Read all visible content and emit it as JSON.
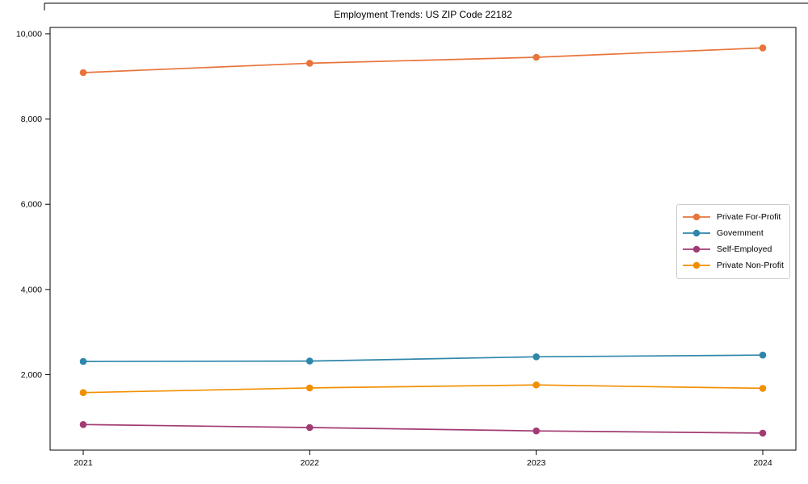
{
  "chart_data": {
    "type": "line",
    "title": "Employment Trends: US ZIP Code 22182",
    "categories": [
      "2021",
      "2022",
      "2023",
      "2024"
    ],
    "xlabel": "",
    "ylabel": "",
    "series": [
      {
        "name": "Private For-Profit",
        "color": "#E8743B",
        "values": [
          9090,
          9310,
          9450,
          9670
        ]
      },
      {
        "name": "Government",
        "color": "#2E86AB",
        "values": [
          2310,
          2320,
          2420,
          2460
        ]
      },
      {
        "name": "Self-Employed",
        "color": "#A23B72",
        "values": [
          830,
          760,
          680,
          630
        ]
      },
      {
        "name": "Private Non-Profit",
        "color": "#F18F01",
        "values": [
          1580,
          1690,
          1760,
          1680
        ]
      }
    ],
    "y_ticks": [
      {
        "value": 2000,
        "label": "2,000"
      },
      {
        "value": 4000,
        "label": "4,000"
      },
      {
        "value": 6000,
        "label": "6,000"
      },
      {
        "value": 8000,
        "label": "8,000"
      },
      {
        "value": 10000,
        "label": "10,000"
      }
    ],
    "ylim": [
      230,
      10150
    ],
    "grid": false,
    "legend_position": "center-right"
  }
}
